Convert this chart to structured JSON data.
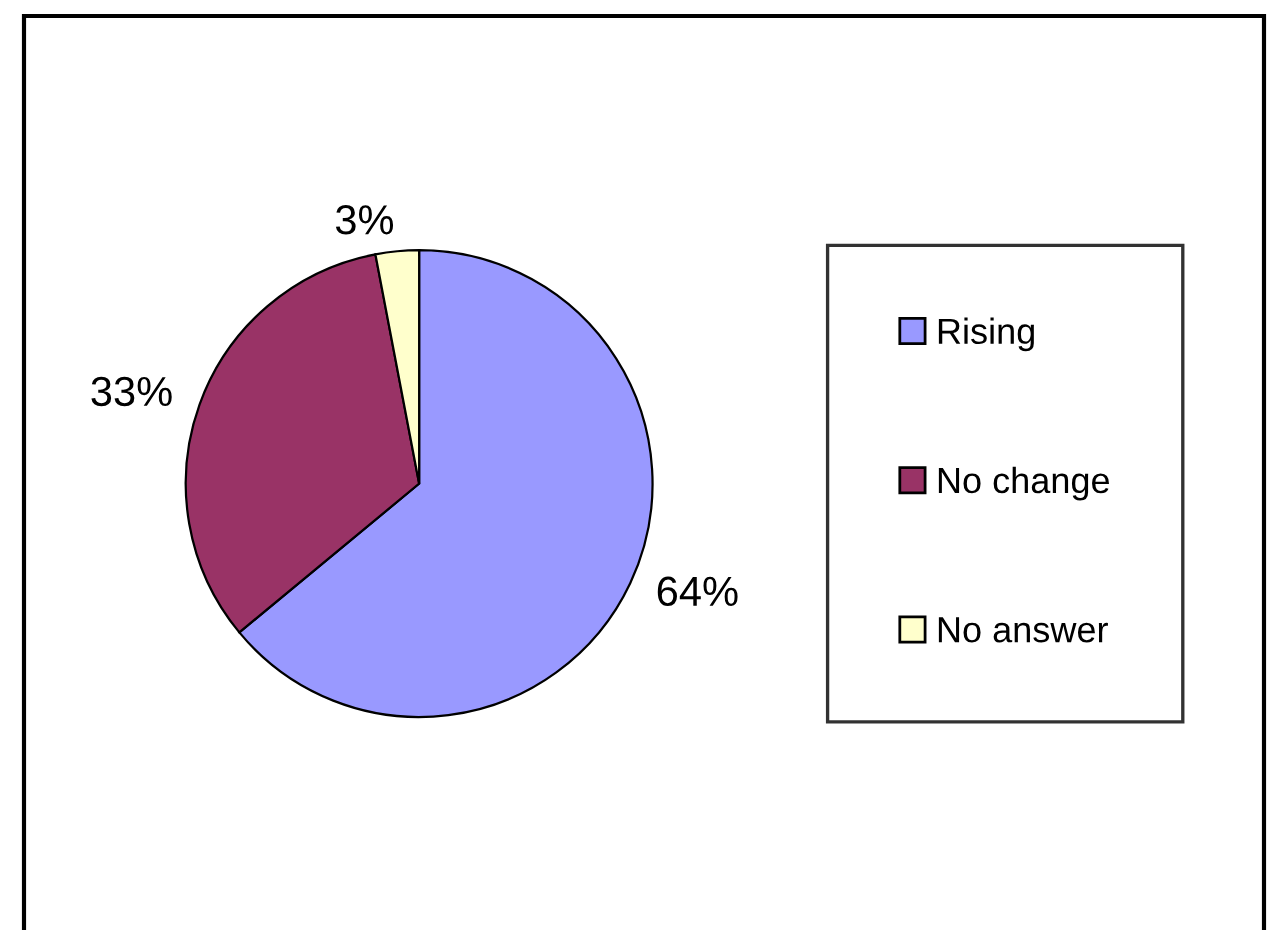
{
  "chart_data": {
    "type": "pie",
    "categories": [
      "Rising",
      "No change",
      "No answer"
    ],
    "values": [
      64,
      33,
      3
    ],
    "colors": [
      "#9999ff",
      "#993366",
      "#ffffcc"
    ],
    "legend": "right",
    "value_labels": [
      "64%",
      "33%",
      "3%"
    ]
  }
}
